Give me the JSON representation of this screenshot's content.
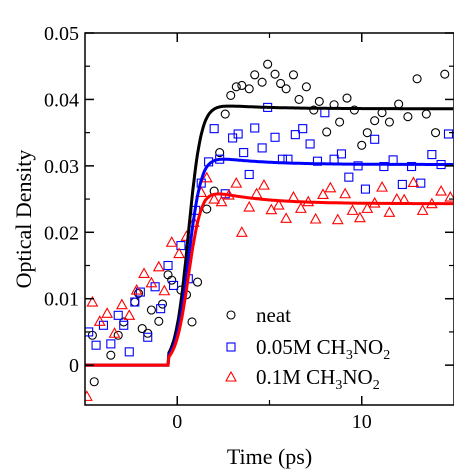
{
  "chart_data": {
    "type": "scatter",
    "xlabel": "Time (ps)",
    "ylabel": "Optical Density",
    "xlim": [
      -5,
      15
    ],
    "ylim": [
      -0.006,
      0.05
    ],
    "xticks": [
      {
        "v": 0,
        "label": "0"
      },
      {
        "v": 10,
        "label": "10"
      }
    ],
    "yticks": [
      {
        "v": 0,
        "label": "0"
      },
      {
        "v": 0.01,
        "label": "0.01"
      },
      {
        "v": 0.02,
        "label": "0.02"
      },
      {
        "v": 0.03,
        "label": "0.03"
      },
      {
        "v": 0.04,
        "label": "0.04"
      },
      {
        "v": 0.05,
        "label": "0.05"
      }
    ],
    "grid": false,
    "legend_position": "bottom-right",
    "series": [
      {
        "name": "neat",
        "legend_parts": [
          {
            "text": "neat"
          }
        ],
        "marker": "circle",
        "color": "#000000",
        "fit": {
          "amplitude": 0.0394,
          "end": 0.0386
        },
        "points": [
          [
            -4.6,
            0.0045
          ],
          [
            -4.5,
            -0.0025
          ],
          [
            -3.6,
            0.0015
          ],
          [
            -3.2,
            0.0045
          ],
          [
            -2.9,
            0.0065
          ],
          [
            -2.3,
            0.0095
          ],
          [
            -2.1,
            0.0108
          ],
          [
            -1.9,
            0.0055
          ],
          [
            -1.6,
            0.0048
          ],
          [
            -1.4,
            0.0083
          ],
          [
            -1.0,
            0.0066
          ],
          [
            -0.8,
            0.0092
          ],
          [
            -0.5,
            0.0136
          ],
          [
            -0.3,
            0.0128
          ],
          [
            0.2,
            0.0113
          ],
          [
            0.5,
            0.0106
          ],
          [
            0.8,
            0.0065
          ],
          [
            1.1,
            0.0125
          ],
          [
            1.6,
            0.0235
          ],
          [
            2.0,
            0.0262
          ],
          [
            2.3,
            0.032
          ],
          [
            2.6,
            0.0378
          ],
          [
            2.9,
            0.0406
          ],
          [
            3.2,
            0.0419
          ],
          [
            3.5,
            0.0421
          ],
          [
            3.9,
            0.0416
          ],
          [
            4.2,
            0.0437
          ],
          [
            4.6,
            0.0426
          ],
          [
            4.9,
            0.0453
          ],
          [
            5.3,
            0.0438
          ],
          [
            5.6,
            0.0424
          ],
          [
            5.9,
            0.0416
          ],
          [
            6.3,
            0.0437
          ],
          [
            6.6,
            0.04
          ],
          [
            7.0,
            0.0419
          ],
          [
            7.4,
            0.0384
          ],
          [
            7.7,
            0.0397
          ],
          [
            8.1,
            0.0351
          ],
          [
            8.5,
            0.0392
          ],
          [
            8.8,
            0.0366
          ],
          [
            9.2,
            0.0402
          ],
          [
            9.6,
            0.0384
          ],
          [
            10.0,
            0.0331
          ],
          [
            10.3,
            0.035
          ],
          [
            10.7,
            0.0368
          ],
          [
            11.1,
            0.038
          ],
          [
            11.5,
            0.0366
          ],
          [
            12.0,
            0.0393
          ],
          [
            12.5,
            0.0374
          ],
          [
            13.0,
            0.0431
          ],
          [
            13.5,
            0.0378
          ],
          [
            14.0,
            0.035
          ],
          [
            14.5,
            0.0438
          ]
        ]
      },
      {
        "name": "0.05M CH3NO2",
        "legend_parts": [
          {
            "text": "0.05M CH"
          },
          {
            "text": "3",
            "sub": true
          },
          {
            "text": "NO"
          },
          {
            "text": "2",
            "sub": true
          }
        ],
        "marker": "square",
        "color": "#0000ff",
        "fit": {
          "amplitude": 0.0316,
          "end": 0.0302
        },
        "points": [
          [
            -4.8,
            0.005
          ],
          [
            -4.4,
            0.003
          ],
          [
            -4.0,
            0.006
          ],
          [
            -3.6,
            0.0032
          ],
          [
            -3.2,
            0.0075
          ],
          [
            -2.9,
            0.006
          ],
          [
            -2.6,
            0.002
          ],
          [
            -2.3,
            0.0095
          ],
          [
            -2.0,
            0.011
          ],
          [
            -1.6,
            0.0042
          ],
          [
            -1.2,
            0.0118
          ],
          [
            -0.9,
            0.0085
          ],
          [
            -0.5,
            0.015
          ],
          [
            -0.2,
            0.012
          ],
          [
            0.2,
            0.018
          ],
          [
            0.6,
            0.013
          ],
          [
            1.0,
            0.0233
          ],
          [
            1.3,
            0.0274
          ],
          [
            1.7,
            0.0306
          ],
          [
            2.0,
            0.0356
          ],
          [
            2.3,
            0.031
          ],
          [
            2.6,
            0.0258
          ],
          [
            3.0,
            0.0342
          ],
          [
            3.3,
            0.0348
          ],
          [
            3.6,
            0.032
          ],
          [
            3.9,
            0.0287
          ],
          [
            4.2,
            0.0357
          ],
          [
            4.6,
            0.0327
          ],
          [
            4.9,
            0.0388
          ],
          [
            5.3,
            0.0343
          ],
          [
            5.7,
            0.031
          ],
          [
            6.0,
            0.031
          ],
          [
            6.4,
            0.0347
          ],
          [
            6.8,
            0.0356
          ],
          [
            7.2,
            0.0333
          ],
          [
            7.6,
            0.0307
          ],
          [
            8.0,
            0.038
          ],
          [
            8.5,
            0.031
          ],
          [
            8.9,
            0.0318
          ],
          [
            9.3,
            0.0283
          ],
          [
            9.8,
            0.03
          ],
          [
            10.2,
            0.0265
          ],
          [
            10.7,
            0.034
          ],
          [
            11.2,
            0.0299
          ],
          [
            11.7,
            0.0309
          ],
          [
            12.2,
            0.0272
          ],
          [
            12.7,
            0.0299
          ],
          [
            13.2,
            0.0274
          ],
          [
            13.8,
            0.0317
          ],
          [
            14.3,
            0.0302
          ],
          [
            14.7,
            0.0348
          ]
        ]
      },
      {
        "name": "0.1M CH3NO2",
        "legend_parts": [
          {
            "text": "0.1M CH"
          },
          {
            "text": "3",
            "sub": true
          },
          {
            "text": "NO"
          },
          {
            "text": "2",
            "sub": true
          }
        ],
        "marker": "triangle",
        "color": "#ff0000",
        "fit": {
          "amplitude": 0.0266,
          "end": 0.0243
        },
        "points": [
          [
            -4.9,
            -0.0047
          ],
          [
            -4.6,
            0.0095
          ],
          [
            -4.2,
            0.0066
          ],
          [
            -3.8,
            0.0078
          ],
          [
            -3.4,
            0.0048
          ],
          [
            -3.0,
            0.0091
          ],
          [
            -2.6,
            0.0075
          ],
          [
            -2.2,
            0.0113
          ],
          [
            -1.8,
            0.0138
          ],
          [
            -1.4,
            0.0124
          ],
          [
            -1.0,
            0.0148
          ],
          [
            -0.7,
            0.0112
          ],
          [
            -0.3,
            0.0185
          ],
          [
            0.1,
            0.0168
          ],
          [
            0.5,
            0.0194
          ],
          [
            0.9,
            0.0215
          ],
          [
            1.3,
            0.026
          ],
          [
            1.6,
            0.0282
          ],
          [
            2.0,
            0.025
          ],
          [
            2.4,
            0.0246
          ],
          [
            2.8,
            0.0256
          ],
          [
            3.2,
            0.0274
          ],
          [
            3.5,
            0.02
          ],
          [
            3.9,
            0.0238
          ],
          [
            4.3,
            0.0258
          ],
          [
            4.7,
            0.0271
          ],
          [
            5.1,
            0.0234
          ],
          [
            5.5,
            0.0241
          ],
          [
            5.9,
            0.0221
          ],
          [
            6.3,
            0.0253
          ],
          [
            6.7,
            0.0236
          ],
          [
            7.1,
            0.0246
          ],
          [
            7.5,
            0.022
          ],
          [
            7.9,
            0.0257
          ],
          [
            8.3,
            0.0267
          ],
          [
            8.7,
            0.0219
          ],
          [
            9.1,
            0.0258
          ],
          [
            9.5,
            0.0233
          ],
          [
            9.9,
            0.0222
          ],
          [
            10.3,
            0.0236
          ],
          [
            10.7,
            0.0244
          ],
          [
            11.1,
            0.0268
          ],
          [
            11.5,
            0.023
          ],
          [
            11.9,
            0.025
          ],
          [
            12.3,
            0.0249
          ],
          [
            12.8,
            0.0275
          ],
          [
            13.3,
            0.0233
          ],
          [
            13.8,
            0.0243
          ],
          [
            14.3,
            0.0262
          ],
          [
            14.8,
            0.0253
          ]
        ]
      }
    ]
  }
}
